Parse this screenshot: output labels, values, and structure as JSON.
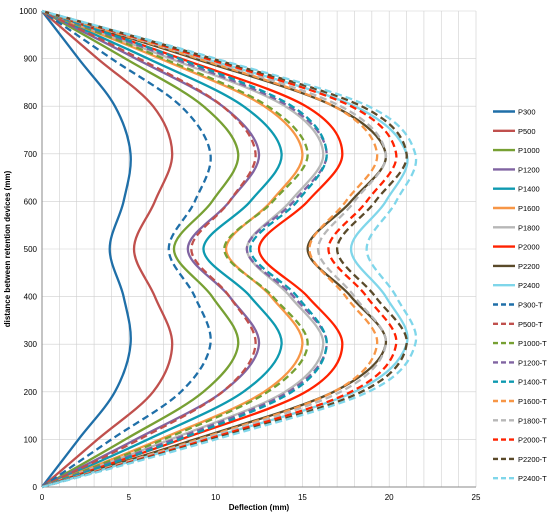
{
  "chart_data": {
    "type": "line",
    "xlabel": "Deflection (mm)",
    "ylabel": "distance between retention devices (mm)",
    "xlim": [
      0,
      25
    ],
    "ylim": [
      0,
      1000
    ],
    "x_ticks": [
      "0",
      "5",
      "10",
      "15",
      "20",
      "25"
    ],
    "y_ticks": [
      "0",
      "100",
      "200",
      "300",
      "400",
      "500",
      "600",
      "700",
      "800",
      "900",
      "1000"
    ],
    "grid": true,
    "legend_position": "right",
    "y": [
      0,
      100,
      200,
      300,
      400,
      500,
      600,
      700,
      800,
      900,
      1000
    ],
    "series": [
      {
        "name": "P300",
        "color": "#1F6FA8",
        "dash": false,
        "x": [
          0,
          2.1,
          4.2,
          5.1,
          4.7,
          3.9,
          4.7,
          5.1,
          4.2,
          2.1,
          0
        ]
      },
      {
        "name": "P500",
        "color": "#C0504D",
        "dash": false,
        "x": [
          0,
          3.2,
          6.4,
          7.5,
          6.5,
          5.3,
          6.5,
          7.5,
          6.4,
          3.2,
          0
        ]
      },
      {
        "name": "P1000",
        "color": "#77A033",
        "dash": false,
        "x": [
          0,
          4.8,
          9.3,
          11.3,
          9.8,
          7.6,
          9.8,
          11.3,
          9.3,
          4.8,
          0
        ]
      },
      {
        "name": "P1200",
        "color": "#8064A2",
        "dash": false,
        "x": [
          0,
          5.4,
          10.4,
          12.5,
          10.8,
          8.4,
          10.8,
          12.5,
          10.4,
          5.4,
          0
        ]
      },
      {
        "name": "P1400",
        "color": "#0E9AB0",
        "dash": false,
        "x": [
          0,
          6.1,
          11.6,
          13.8,
          12.0,
          9.3,
          12.0,
          13.8,
          11.6,
          6.1,
          0
        ]
      },
      {
        "name": "P1600",
        "color": "#F79646",
        "dash": false,
        "x": [
          0,
          6.8,
          12.8,
          15.0,
          13.2,
          10.6,
          13.2,
          15.0,
          12.8,
          6.8,
          0
        ]
      },
      {
        "name": "P1800",
        "color": "#B7B7B7",
        "dash": false,
        "x": [
          0,
          7.4,
          14.0,
          16.2,
          14.3,
          11.8,
          14.3,
          16.2,
          14.0,
          7.4,
          0
        ]
      },
      {
        "name": "P2000",
        "color": "#FF2200",
        "dash": false,
        "x": [
          0,
          8.0,
          15.2,
          17.3,
          15.3,
          12.5,
          15.3,
          17.3,
          15.2,
          8.0,
          0
        ]
      },
      {
        "name": "P2200",
        "color": "#5A4A2A",
        "dash": false,
        "x": [
          0,
          8.8,
          16.8,
          19.8,
          17.8,
          15.3,
          17.8,
          19.8,
          16.8,
          8.8,
          0
        ]
      },
      {
        "name": "P2400",
        "color": "#7FD6EA",
        "dash": false,
        "x": [
          0,
          9.4,
          18.0,
          21.0,
          19.8,
          17.8,
          19.8,
          21.0,
          18.0,
          9.4,
          0
        ]
      },
      {
        "name": "P300-T",
        "color": "#1F6FA8",
        "dash": true,
        "x": [
          0,
          4.0,
          8.0,
          9.7,
          8.8,
          7.3,
          8.8,
          9.7,
          8.0,
          4.0,
          0
        ]
      },
      {
        "name": "P500-T",
        "color": "#C0504D",
        "dash": true,
        "x": [
          0,
          5.6,
          10.4,
          12.3,
          10.8,
          8.6,
          10.8,
          12.3,
          10.4,
          5.6,
          0
        ]
      },
      {
        "name": "P1000-T",
        "color": "#77A033",
        "dash": true,
        "x": [
          0,
          7.0,
          13.0,
          15.3,
          13.3,
          10.5,
          13.3,
          15.3,
          13.0,
          7.0,
          0
        ]
      },
      {
        "name": "P1200-T",
        "color": "#8064A2",
        "dash": true,
        "x": [
          0,
          7.6,
          14.2,
          16.4,
          14.5,
          11.8,
          14.5,
          16.4,
          14.2,
          7.6,
          0
        ]
      },
      {
        "name": "P1400-T",
        "color": "#0E9AB0",
        "dash": true,
        "x": [
          0,
          7.9,
          14.4,
          16.4,
          14.7,
          12.0,
          14.7,
          16.4,
          14.4,
          7.9,
          0
        ]
      },
      {
        "name": "P1600-T",
        "color": "#F79646",
        "dash": true,
        "x": [
          0,
          9.0,
          16.8,
          19.3,
          17.5,
          15.4,
          17.5,
          19.3,
          16.8,
          9.0,
          0
        ]
      },
      {
        "name": "P1800-T",
        "color": "#B7B7B7",
        "dash": true,
        "x": [
          0,
          9.2,
          17.2,
          19.8,
          18.0,
          15.9,
          18.0,
          19.8,
          17.2,
          9.2,
          0
        ]
      },
      {
        "name": "P2000-T",
        "color": "#FF2200",
        "dash": true,
        "x": [
          0,
          9.5,
          17.8,
          20.4,
          18.7,
          16.5,
          18.7,
          20.4,
          17.8,
          9.5,
          0
        ]
      },
      {
        "name": "P2200-T",
        "color": "#5A4A2A",
        "dash": true,
        "x": [
          0,
          9.8,
          18.4,
          21.0,
          19.2,
          17.0,
          19.2,
          21.0,
          18.4,
          9.8,
          0
        ]
      },
      {
        "name": "P2400-T",
        "color": "#7FD6EA",
        "dash": true,
        "x": [
          0,
          10.0,
          18.8,
          21.5,
          20.4,
          18.7,
          20.4,
          21.5,
          18.8,
          10.0,
          0
        ]
      }
    ]
  }
}
